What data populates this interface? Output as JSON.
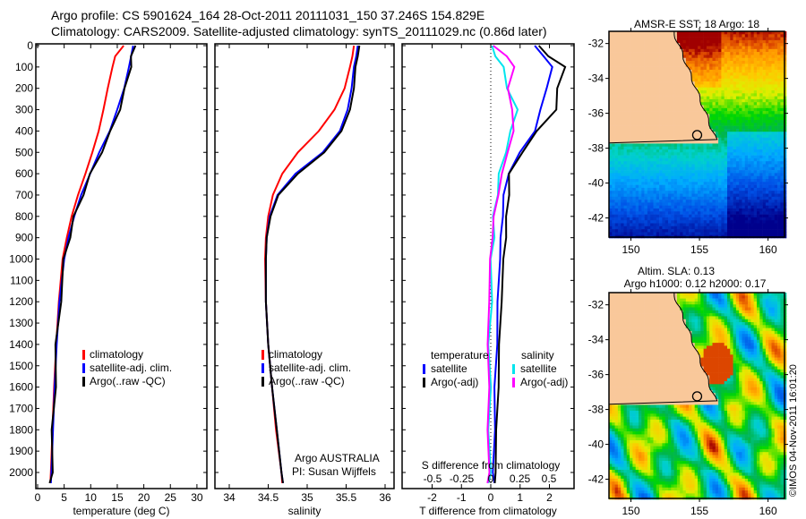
{
  "header": {
    "line1": "Argo profile: CS 5901624_164 28-Oct-2011 20111031_150 37.246S 154.829E",
    "line2": "Climatology: CARS2009. Satellite-adjusted climatology: synTS_20111029.nc (0.86d later)"
  },
  "copyright": "©IMOS 04-Nov-2011 16:01:20",
  "colors": {
    "climatology": "#ff0000",
    "satellite": "#0000ff",
    "argo": "#000000",
    "sal_satellite": "#00e5ee",
    "sal_argo": "#ff00ff",
    "land": "#f9c89a"
  },
  "chart_data": [
    {
      "type": "line",
      "name": "temperature-panel",
      "xlabel": "temperature (deg C)",
      "ylabel": "",
      "xlim": [
        -1,
        31
      ],
      "ylim": [
        2050,
        0
      ],
      "xticks": [
        "0",
        "5",
        "10",
        "15",
        "20",
        "25",
        "30"
      ],
      "yticks": [
        "0",
        "100",
        "200",
        "300",
        "400",
        "500",
        "600",
        "700",
        "800",
        "900",
        "1000",
        "1100",
        "1200",
        "1300",
        "1400",
        "1500",
        "1600",
        "1700",
        "1800",
        "1900",
        "2000"
      ],
      "depth": [
        0,
        50,
        100,
        200,
        300,
        400,
        500,
        600,
        700,
        800,
        900,
        1000,
        1200,
        1400,
        1600,
        1800,
        2000,
        2050
      ],
      "series": [
        {
          "name": "climatology",
          "color": "#ff0000",
          "values": [
            16.2,
            14.6,
            14.1,
            13.2,
            12.4,
            11.5,
            10.3,
            9.0,
            7.6,
            6.4,
            5.5,
            4.7,
            4.0,
            3.5,
            3.1,
            2.8,
            2.5,
            2.4
          ]
        },
        {
          "name": "satellite-adj. clim.",
          "color": "#0000ff",
          "values": [
            18.0,
            17.6,
            17.2,
            16.3,
            15.0,
            13.6,
            11.6,
            9.9,
            8.2,
            6.9,
            5.8,
            5.0,
            4.1,
            3.6,
            3.2,
            2.9,
            2.6,
            2.5
          ]
        },
        {
          "name": "Argo(..raw -QC)",
          "color": "#000000",
          "values": [
            18.2,
            17.8,
            17.4,
            16.6,
            15.3,
            13.9,
            11.9,
            10.1,
            8.4,
            7.0,
            5.9,
            5.1,
            4.2,
            3.6,
            3.2,
            2.9,
            2.6,
            2.5
          ]
        }
      ]
    },
    {
      "type": "line",
      "name": "salinity-panel",
      "xlabel": "salinity",
      "xlim": [
        33.8,
        36.1
      ],
      "ylim": [
        2050,
        0
      ],
      "xticks": [
        "34",
        "34.5",
        "35",
        "35.5",
        "36"
      ],
      "depth": [
        0,
        50,
        100,
        200,
        300,
        400,
        500,
        600,
        700,
        800,
        900,
        1000,
        1200,
        1400,
        1600,
        1800,
        2000,
        2050
      ],
      "series": [
        {
          "name": "climatology",
          "color": "#ff0000",
          "values": [
            35.6,
            35.58,
            35.55,
            35.48,
            35.35,
            35.15,
            34.88,
            34.68,
            34.56,
            34.5,
            34.47,
            34.46,
            34.47,
            34.5,
            34.55,
            34.6,
            34.67,
            34.68
          ]
        },
        {
          "name": "satellite-adj. clim.",
          "color": "#0000ff",
          "values": [
            35.65,
            35.63,
            35.6,
            35.57,
            35.52,
            35.42,
            35.2,
            34.85,
            34.62,
            34.52,
            34.48,
            34.47,
            34.47,
            34.5,
            34.55,
            34.61,
            34.67,
            34.69
          ]
        },
        {
          "name": "Argo(..raw -QC)",
          "color": "#000000",
          "values": [
            35.67,
            35.65,
            35.62,
            35.6,
            35.55,
            35.44,
            35.22,
            34.88,
            34.63,
            34.53,
            34.48,
            34.47,
            34.47,
            34.5,
            34.55,
            34.61,
            34.67,
            34.69
          ]
        }
      ],
      "annotation": [
        "Argo AUSTRALIA",
        "PI: Susan Wijffels"
      ]
    },
    {
      "type": "line",
      "name": "difference-panel",
      "xlabel": "T difference from climatology",
      "x2label": "S difference from climatology",
      "xlim": [
        -3,
        3
      ],
      "ylim": [
        2050,
        0
      ],
      "xticks": [
        "-2",
        "-1",
        "0",
        "1",
        "2"
      ],
      "x2ticks": [
        "-0.5",
        "-0.25",
        "0",
        "0.25",
        "0.5"
      ],
      "depth": [
        0,
        50,
        100,
        200,
        300,
        400,
        500,
        600,
        700,
        800,
        900,
        1000,
        1200,
        1400,
        1600,
        1800,
        2000,
        2050
      ],
      "legend_headers": [
        "temperature",
        "salinity"
      ],
      "series": [
        {
          "name": "satellite",
          "group": "temperature",
          "color": "#0000ff",
          "values": [
            1.5,
            1.8,
            2.1,
            1.9,
            1.7,
            1.5,
            1.0,
            0.6,
            0.45,
            0.4,
            0.35,
            0.3,
            0.25,
            0.2,
            0.15,
            0.12,
            0.1,
            0.1
          ]
        },
        {
          "name": "Argo(-adj)",
          "group": "temperature",
          "color": "#000000",
          "values": [
            1.6,
            2.0,
            2.5,
            2.3,
            2.2,
            1.6,
            1.05,
            0.65,
            0.6,
            0.55,
            0.5,
            0.45,
            0.35,
            0.3,
            0.25,
            0.2,
            0.15,
            0.15
          ]
        },
        {
          "name": "satellite",
          "group": "salinity",
          "color": "#00e5ee",
          "values": [
            0.0,
            0.05,
            0.1,
            0.15,
            0.22,
            0.18,
            0.12,
            0.08,
            0.05,
            0.03,
            0.02,
            0.01,
            0.0,
            -0.01,
            -0.01,
            -0.01,
            -0.01,
            -0.01
          ]
        },
        {
          "name": "Argo(-adj)",
          "group": "salinity",
          "color": "#ff00ff",
          "values": [
            0.02,
            0.14,
            0.2,
            0.15,
            0.18,
            0.2,
            0.14,
            0.1,
            0.06,
            0.03,
            0.01,
            0.0,
            -0.02,
            -0.02,
            -0.02,
            -0.02,
            -0.02,
            -0.02
          ]
        }
      ]
    },
    {
      "type": "heatmap",
      "name": "sst-map",
      "title": "AMSR-E SST: 18 Argo: 18",
      "xticks": [
        "150",
        "155",
        "160"
      ],
      "yticks": [
        "-32",
        "-34",
        "-36",
        "-38",
        "-40",
        "-42"
      ],
      "xlim": [
        148.4,
        161.2
      ],
      "ylim": [
        -43.1,
        -31.3
      ],
      "argo_position": {
        "lon": 154.829,
        "lat": -37.246
      }
    },
    {
      "type": "heatmap",
      "name": "sla-map",
      "title1": "Altim. SLA: 0.13",
      "title2": "Argo h1000: 0.12 h2000: 0.17",
      "xticks": [
        "150",
        "155",
        "160"
      ],
      "yticks": [
        "-32",
        "-34",
        "-36",
        "-38",
        "-40",
        "-42"
      ],
      "xlim": [
        148.4,
        161.2
      ],
      "ylim": [
        -43.1,
        -31.3
      ],
      "argo_position": {
        "lon": 154.829,
        "lat": -37.246
      }
    }
  ]
}
